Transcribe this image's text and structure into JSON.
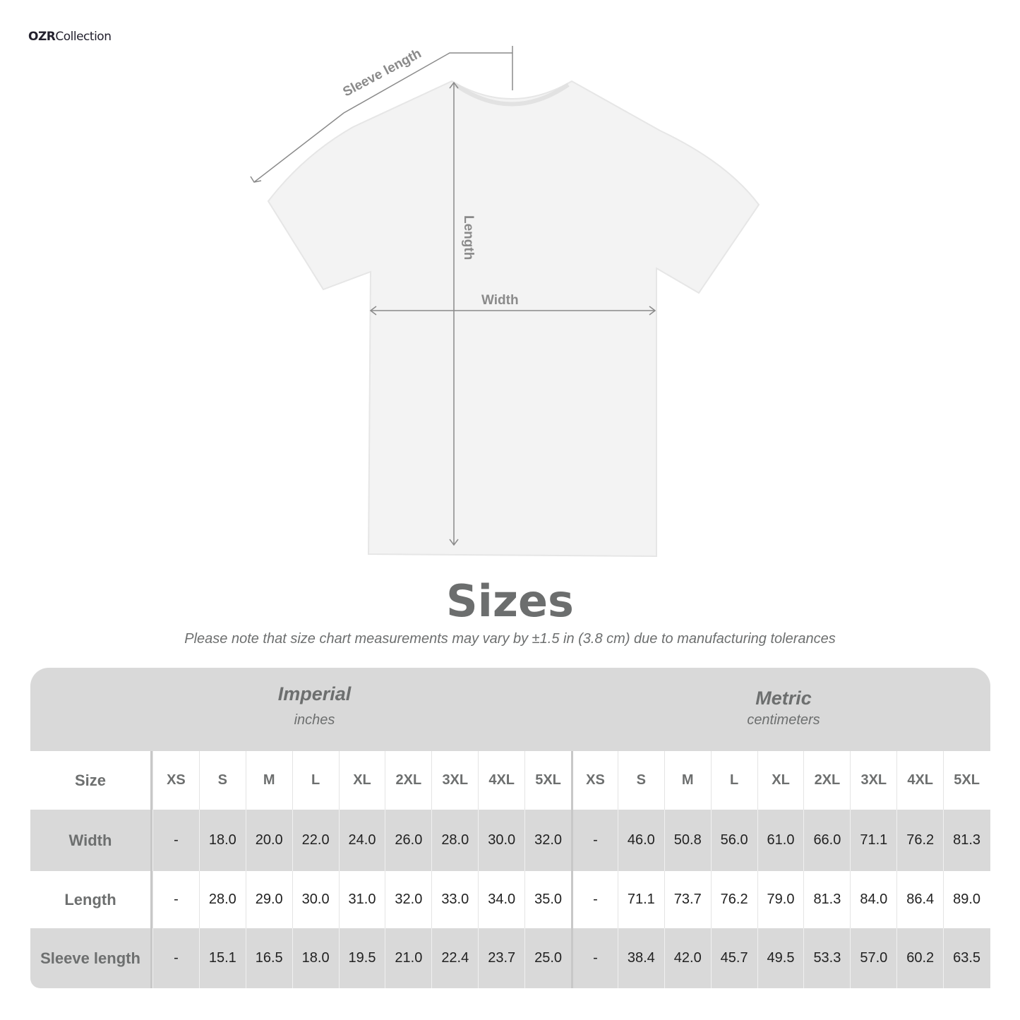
{
  "brand": {
    "logo_text_bold": "OZR",
    "logo_text": "Collection"
  },
  "diagram": {
    "sleeve_label": "Sleeve length",
    "length_label": "Length",
    "width_label": "Width"
  },
  "title": "Sizes",
  "note": "Please note that size chart measurements may vary by ±1.5 in (3.8 cm) due to manufacturing tolerances",
  "groups": {
    "imperial": {
      "title": "Imperial",
      "unit": "inches"
    },
    "metric": {
      "title": "Metric",
      "unit": "centimeters"
    }
  },
  "header_label": "Size",
  "sizes": [
    "XS",
    "S",
    "M",
    "L",
    "XL",
    "2XL",
    "3XL",
    "4XL",
    "5XL"
  ],
  "rows": [
    {
      "label": "Width",
      "imperial": [
        "-",
        "18.0",
        "20.0",
        "22.0",
        "24.0",
        "26.0",
        "28.0",
        "30.0",
        "32.0"
      ],
      "metric": [
        "-",
        "46.0",
        "50.8",
        "56.0",
        "61.0",
        "66.0",
        "71.1",
        "76.2",
        "81.3"
      ]
    },
    {
      "label": "Length",
      "imperial": [
        "-",
        "28.0",
        "29.0",
        "30.0",
        "31.0",
        "32.0",
        "33.0",
        "34.0",
        "35.0"
      ],
      "metric": [
        "-",
        "71.1",
        "73.7",
        "76.2",
        "79.0",
        "81.3",
        "84.0",
        "86.4",
        "89.0"
      ]
    },
    {
      "label": "Sleeve length",
      "imperial": [
        "-",
        "15.1",
        "16.5",
        "18.0",
        "19.5",
        "21.0",
        "22.4",
        "23.7",
        "25.0"
      ],
      "metric": [
        "-",
        "38.4",
        "42.0",
        "45.7",
        "49.5",
        "53.3",
        "57.0",
        "60.2",
        "63.5"
      ]
    }
  ],
  "colors": {
    "table_gray": "#d9d9d9",
    "text_gray": "#6d6f6f"
  }
}
